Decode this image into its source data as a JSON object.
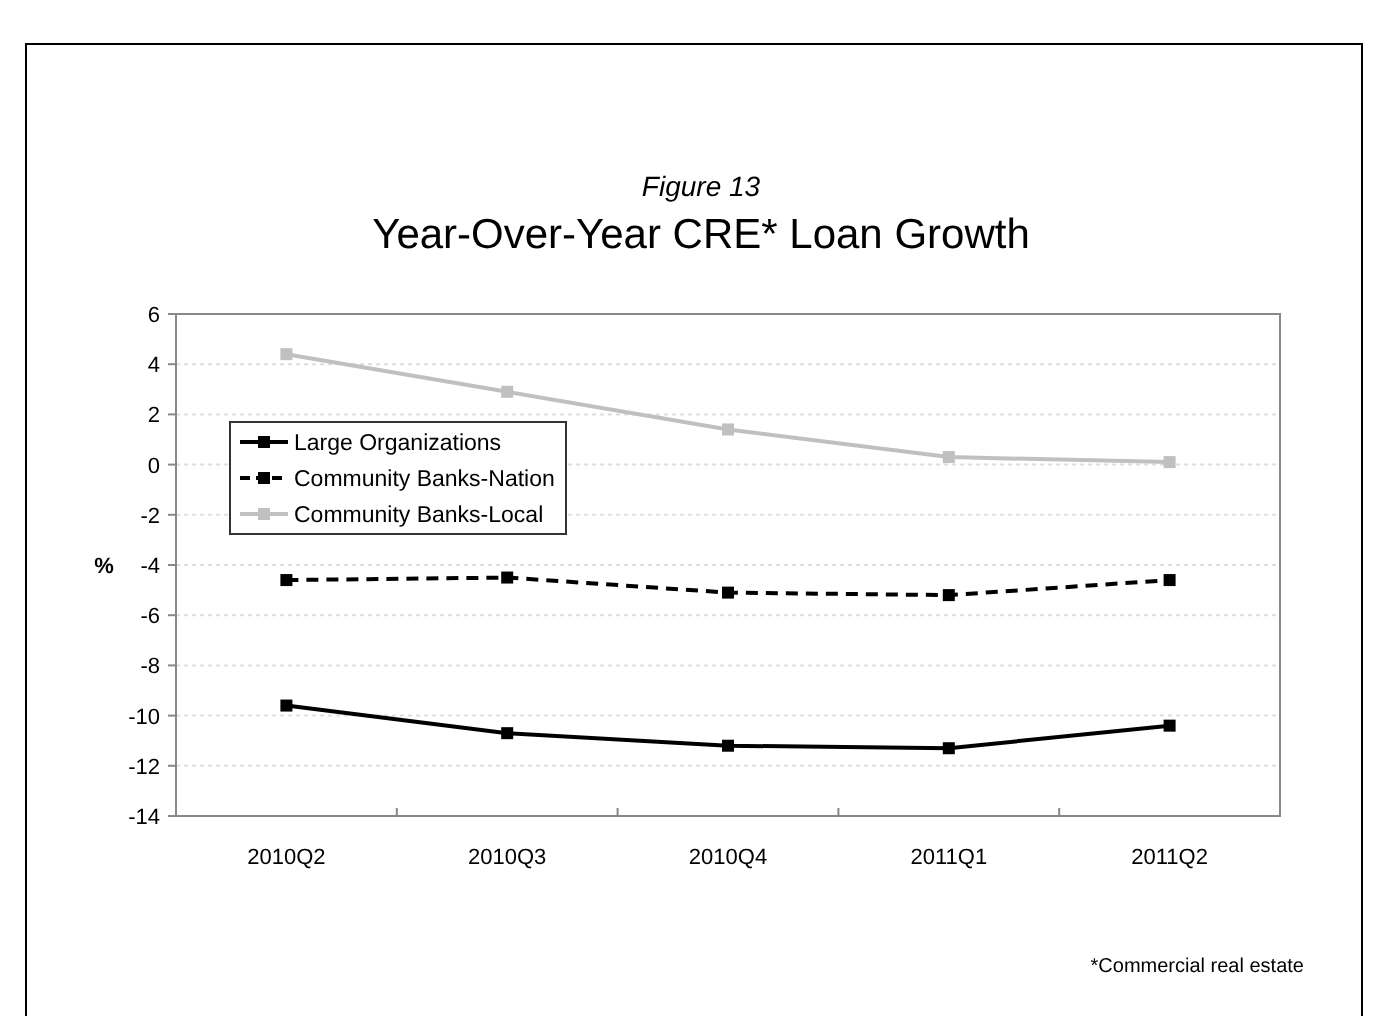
{
  "chart_data": {
    "type": "line",
    "title": "Year-Over-Year CRE* Loan Growth",
    "subtitle": "Figure 13",
    "ylabel": "%",
    "categories": [
      "2010Q2",
      "2010Q3",
      "2010Q4",
      "2011Q1",
      "2011Q2"
    ],
    "series": [
      {
        "name": "Large Organizations",
        "color": "#000000",
        "line_style": "solid",
        "values": [
          -9.6,
          -10.7,
          -11.2,
          -11.3,
          -10.4
        ]
      },
      {
        "name": "Community Banks-Nation",
        "color": "#000000",
        "line_style": "dashed",
        "values": [
          -4.6,
          -4.5,
          -5.1,
          -5.2,
          -4.6
        ]
      },
      {
        "name": "Community Banks-Local",
        "color": "#c0c0c0",
        "line_style": "solid",
        "values": [
          4.4,
          2.9,
          1.4,
          0.3,
          0.1
        ]
      }
    ],
    "ylim": [
      -14,
      6
    ],
    "yticks": [
      -14,
      -12,
      -10,
      -8,
      -6,
      -4,
      -2,
      0,
      2,
      4,
      6
    ],
    "grid": "y",
    "legend": "top left",
    "marker": "square",
    "annotations": [
      "*Commercial real estate"
    ]
  }
}
